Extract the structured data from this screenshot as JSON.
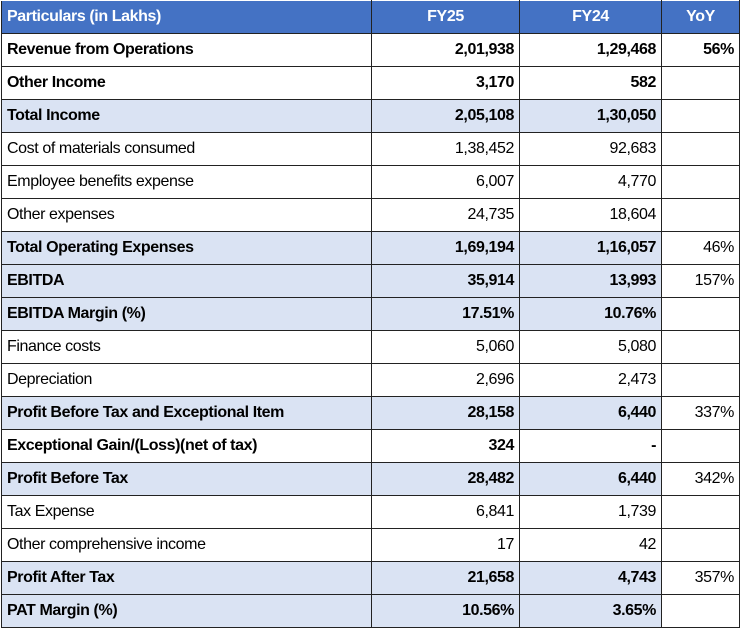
{
  "table": {
    "header": [
      "Particulars (in Lakhs)",
      "FY25",
      "FY24",
      "YoY"
    ],
    "rows": [
      [
        "Revenue from Operations",
        "2,01,938",
        "1,29,468",
        "56%"
      ],
      [
        "Other Income",
        "3,170",
        "582",
        null
      ],
      [
        "Total Income",
        "2,05,108",
        "1,30,050",
        null
      ],
      [
        "Cost of materials consumed",
        "1,38,452",
        "92,683",
        null
      ],
      [
        "Employee benefits expense",
        "6,007",
        "4,770",
        null
      ],
      [
        "Other expenses",
        "24,735",
        "18,604",
        null
      ],
      [
        "Total Operating Expenses",
        "1,69,194",
        "1,16,057",
        "46%"
      ],
      [
        "EBITDA",
        "35,914",
        "13,993",
        "157%"
      ],
      [
        "EBITDA Margin (%)",
        "17.51%",
        "10.76%",
        null
      ],
      [
        "Finance costs",
        "5,060",
        "5,080",
        null
      ],
      [
        "Depreciation",
        "2,696",
        "2,473",
        null
      ],
      [
        "Profit Before Tax and Exceptional Item",
        "28,158",
        "6,440",
        "337%"
      ],
      [
        "Exceptional Gain/(Loss)(net of tax)",
        "324",
        "-",
        null
      ],
      [
        "Profit Before Tax",
        "28,482",
        "6,440",
        "342%"
      ],
      [
        "Tax Expense",
        "6,841",
        "1,739",
        null
      ],
      [
        "Other comprehensive income",
        "17",
        "42",
        null
      ],
      [
        "Profit After Tax",
        "21,658",
        "4,743",
        "357%"
      ],
      [
        "PAT Margin (%)",
        "10.56%",
        "3.65%",
        null
      ]
    ]
  }
}
